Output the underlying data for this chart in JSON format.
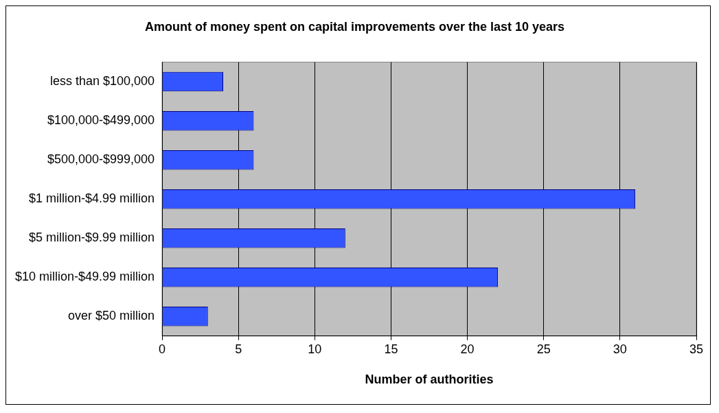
{
  "chart_data": {
    "type": "bar",
    "orientation": "horizontal",
    "title": "Amount of money spent on capital improvements over the last 10 years",
    "xlabel": "Number of authorities",
    "categories": [
      "less than $100,000",
      "$100,000-$499,000",
      "$500,000-$999,000",
      "$1 million-$4.99 million",
      "$5 million-$9.99 million",
      "$10 million-$49.99 million",
      "over $50 million"
    ],
    "values": [
      4,
      6,
      6,
      31,
      12,
      22,
      3
    ],
    "color": "#3355ff",
    "xlim": [
      0,
      35
    ],
    "xticks": [
      0,
      5,
      10,
      15,
      20,
      25,
      30,
      35
    ],
    "grid": "x",
    "legend": false
  }
}
